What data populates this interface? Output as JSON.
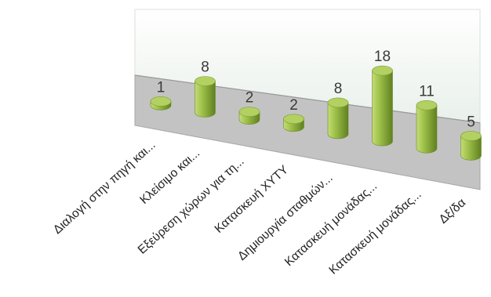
{
  "chart_data": {
    "type": "bar",
    "categories": [
      "Διαλογή στην πηγή και...",
      "Κλείσιμο και...",
      "Εξεύρεση χώρων για τη...",
      "Κατασκευή ΧΥΤΥ",
      "Δημιουργία σταθμών...",
      "Κατασκευή μονάδας...",
      "Κατασκευή μονάδας...",
      "Δξ/δα"
    ],
    "values": [
      1,
      8,
      2,
      2,
      8,
      18,
      11,
      5
    ],
    "title": "",
    "xlabel": "",
    "ylabel": "",
    "ylim": [
      0,
      18
    ],
    "grid": false,
    "legend": "none",
    "style": "3d-cylinder",
    "colors": {
      "bar_light": "#c4dd78",
      "bar_mid": "#9fc24a",
      "bar_dark": "#5f7f20",
      "bar_top": "#b3d062",
      "back_wall": "#eef3ee",
      "floor": "#c3c3c3",
      "floor_edge": "#a7a7a7"
    }
  }
}
